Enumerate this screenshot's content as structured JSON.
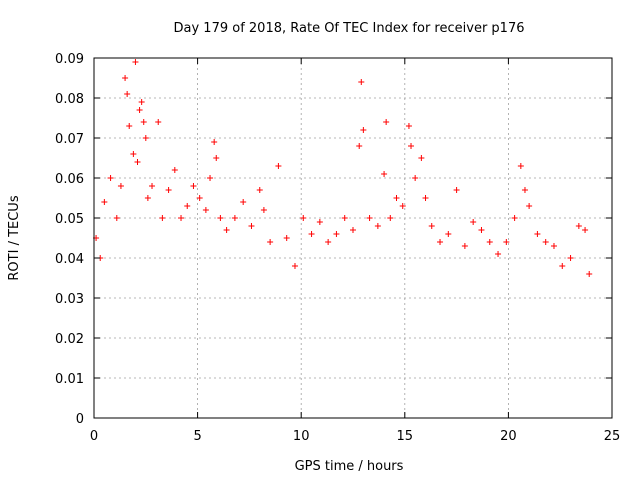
{
  "chart_data": {
    "type": "scatter",
    "title": "Day 179 of 2018, Rate Of TEC Index for receiver p176",
    "xlabel": "GPS time / hours",
    "ylabel": "ROTI / TECUs",
    "xlim": [
      0,
      25
    ],
    "ylim": [
      0,
      0.09
    ],
    "xticks": [
      0,
      5,
      10,
      15,
      20,
      25
    ],
    "yticks": [
      0,
      0.01,
      0.02,
      0.03,
      0.04,
      0.05,
      0.06,
      0.07,
      0.08,
      0.09
    ],
    "xtick_labels": [
      "0",
      "5",
      "10",
      "15",
      "20",
      "25"
    ],
    "ytick_labels": [
      "0",
      "0.01",
      "0.02",
      "0.03",
      "0.04",
      "0.05",
      "0.06",
      "0.07",
      "0.08",
      "0.09"
    ],
    "grid": true,
    "marker": "+",
    "color": "#ff0000",
    "series": [
      {
        "x": [
          0.1,
          0.3,
          0.5,
          0.8,
          1.1,
          1.3,
          1.5,
          1.6,
          1.7,
          1.9,
          2.0,
          2.1,
          2.2,
          2.3,
          2.4,
          2.5,
          2.6,
          2.8,
          3.1,
          3.3,
          3.6,
          3.9,
          4.2,
          4.5,
          4.8,
          5.1,
          5.4,
          5.6,
          5.8,
          5.9,
          6.1,
          6.4,
          6.8,
          7.2,
          7.6,
          8.0,
          8.2,
          8.5,
          8.9,
          9.3,
          9.7,
          10.1,
          10.5,
          10.9,
          11.3,
          11.7,
          12.1,
          12.5,
          12.8,
          12.9,
          13.0,
          13.3,
          13.7,
          14.0,
          14.1,
          14.3,
          14.6,
          14.9,
          15.2,
          15.3,
          15.5,
          15.8,
          16.0,
          16.3,
          16.7,
          17.1,
          17.5,
          17.9,
          18.3,
          18.7,
          19.1,
          19.5,
          19.9,
          20.3,
          20.6,
          20.8,
          21.0,
          21.4,
          21.8,
          22.2,
          22.6,
          23.0,
          23.4,
          23.7,
          23.9
        ],
        "y": [
          0.045,
          0.04,
          0.054,
          0.06,
          0.05,
          0.058,
          0.085,
          0.081,
          0.073,
          0.066,
          0.089,
          0.064,
          0.077,
          0.079,
          0.074,
          0.07,
          0.055,
          0.058,
          0.074,
          0.05,
          0.057,
          0.062,
          0.05,
          0.053,
          0.058,
          0.055,
          0.052,
          0.06,
          0.069,
          0.065,
          0.05,
          0.047,
          0.05,
          0.054,
          0.048,
          0.057,
          0.052,
          0.044,
          0.063,
          0.045,
          0.038,
          0.05,
          0.046,
          0.049,
          0.044,
          0.046,
          0.05,
          0.047,
          0.068,
          0.084,
          0.072,
          0.05,
          0.048,
          0.061,
          0.074,
          0.05,
          0.055,
          0.053,
          0.073,
          0.068,
          0.06,
          0.065,
          0.055,
          0.048,
          0.044,
          0.046,
          0.057,
          0.043,
          0.049,
          0.047,
          0.044,
          0.041,
          0.044,
          0.05,
          0.063,
          0.057,
          0.053,
          0.046,
          0.044,
          0.043,
          0.038,
          0.04,
          0.048,
          0.047,
          0.036
        ]
      }
    ]
  }
}
